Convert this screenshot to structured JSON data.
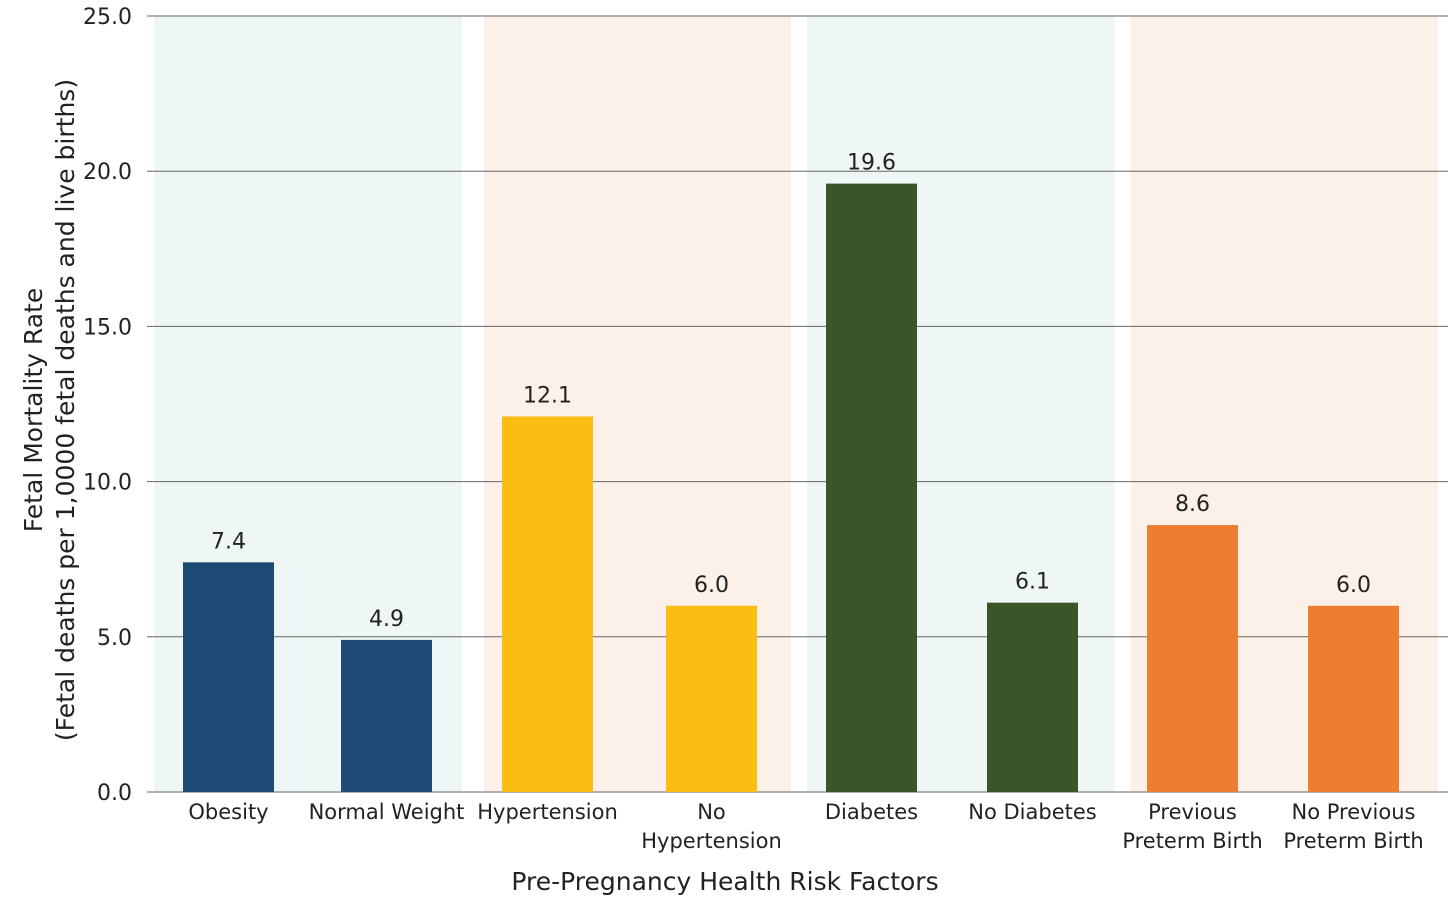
{
  "chart_data": {
    "type": "bar",
    "xlabel": "Pre-Pregnancy Health Risk Factors",
    "ylabel": [
      "Fetal Mortality Rate",
      "(Fetal deaths per 1,0000 fetal deaths and live births)"
    ],
    "ylim": [
      0,
      25
    ],
    "yticks": [
      "0.0",
      "5.0",
      "10.0",
      "15.0",
      "20.0",
      "25.0"
    ],
    "grid": true,
    "categories": [
      [
        "Obesity"
      ],
      [
        "Normal Weight"
      ],
      [
        "Hypertension"
      ],
      [
        "No",
        "Hypertension"
      ],
      [
        "Diabetes"
      ],
      [
        "No Diabetes"
      ],
      [
        "Previous",
        "Preterm Birth"
      ],
      [
        "No Previous",
        "Preterm Birth"
      ]
    ],
    "values": [
      7.4,
      4.9,
      12.1,
      6.0,
      19.6,
      6.1,
      8.6,
      6.0
    ],
    "data_labels": [
      "7.4",
      "4.9",
      "12.1",
      "6.0",
      "19.6",
      "6.1",
      "8.6",
      "6.0"
    ],
    "bar_colors": [
      "#1d4b75",
      "#1d4b75",
      "#f9bd13",
      "#f9bd13",
      "#3a5629",
      "#3a5629",
      "#ed7d31",
      "#ed7d31"
    ],
    "group_backgrounds": [
      "#eef7f6",
      "#fcf1e8",
      "#eef7f6",
      "#fcf1e8"
    ]
  }
}
